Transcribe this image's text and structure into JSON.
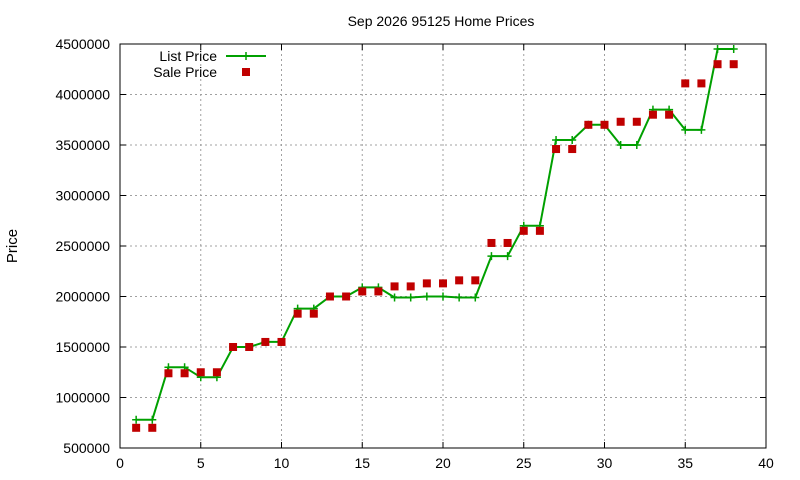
{
  "chart_data": {
    "type": "line",
    "title": "Sep 2026 95125 Home Prices",
    "xlabel": "",
    "ylabel": "Price",
    "xlim": [
      0,
      40
    ],
    "ylim": [
      500000,
      4500000
    ],
    "xticks": [
      0,
      5,
      10,
      15,
      20,
      25,
      30,
      35,
      40
    ],
    "yticks": [
      500000,
      1000000,
      1500000,
      2000000,
      2500000,
      3000000,
      3500000,
      4000000,
      4500000
    ],
    "grid": true,
    "legend_position": "top-left",
    "x": [
      1,
      2,
      3,
      4,
      5,
      6,
      7,
      8,
      9,
      10,
      11,
      12,
      13,
      14,
      15,
      16,
      17,
      18,
      19,
      20,
      21,
      22,
      23,
      24,
      25,
      26,
      27,
      28,
      29,
      30,
      31,
      32,
      33,
      34,
      35,
      36,
      37,
      38
    ],
    "series": [
      {
        "name": "List Price",
        "style": "lines+plus",
        "color": "#00a000",
        "values": [
          780000,
          780000,
          1300000,
          1300000,
          1200000,
          1200000,
          1500000,
          1500000,
          1550000,
          1550000,
          1880000,
          1880000,
          2000000,
          2000000,
          2090000,
          2090000,
          1990000,
          1990000,
          2000000,
          2000000,
          1990000,
          1990000,
          2400000,
          2400000,
          2700000,
          2700000,
          3550000,
          3550000,
          3700000,
          3700000,
          3500000,
          3500000,
          3850000,
          3850000,
          3650000,
          3650000,
          4450000,
          4450000
        ]
      },
      {
        "name": "Sale Price",
        "style": "points-square",
        "color": "#c00000",
        "values": [
          700000,
          700000,
          1240000,
          1240000,
          1250000,
          1250000,
          1500000,
          1500000,
          1550000,
          1550000,
          1830000,
          1830000,
          2000000,
          2000000,
          2050000,
          2050000,
          2100000,
          2100000,
          2130000,
          2130000,
          2160000,
          2160000,
          2530000,
          2530000,
          2650000,
          2650000,
          3460000,
          3460000,
          3700000,
          3700000,
          3730000,
          3730000,
          3800000,
          3800000,
          4110000,
          4110000,
          4300000,
          4300000
        ]
      }
    ]
  }
}
